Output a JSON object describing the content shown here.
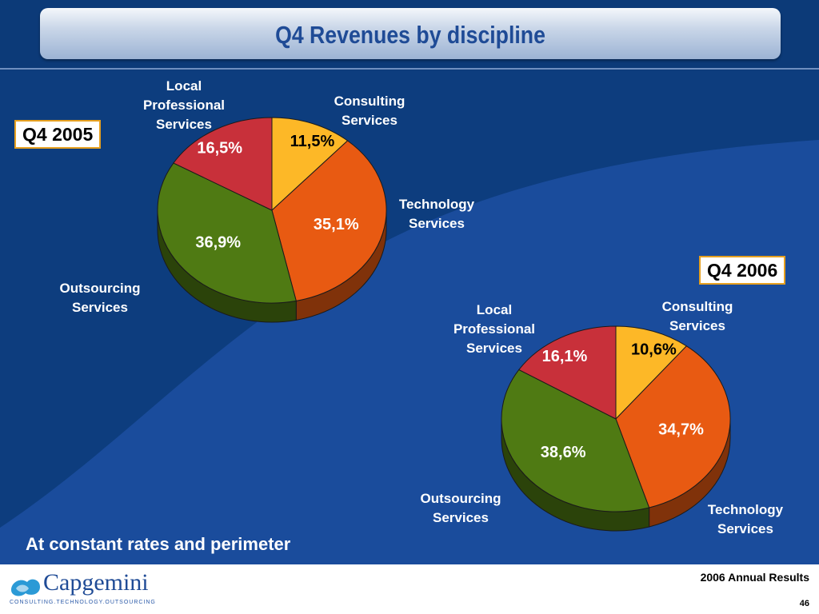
{
  "title": "Q4 Revenues by discipline",
  "caption": "At constant rates and perimeter",
  "footer": {
    "report": "2006 Annual Results",
    "page": "46"
  },
  "logo": {
    "name": "Capgemini",
    "tagline": "CONSULTING.TECHNOLOGY.OUTSOURCING"
  },
  "colors": {
    "consulting": "#fdb827",
    "technology": "#e85a12",
    "outsourcing": "#4f7a13",
    "local": "#c8303a"
  },
  "chart_data": [
    {
      "type": "pie",
      "title": "Q4 2005",
      "slices": [
        {
          "label": "Consulting Services",
          "value": 11.5,
          "display": "11,5%"
        },
        {
          "label": "Technology Services",
          "value": 35.1,
          "display": "35,1%"
        },
        {
          "label": "Outsourcing Services",
          "value": 36.9,
          "display": "36,9%"
        },
        {
          "label": "Local Professional Services",
          "value": 16.5,
          "display": "16,5%"
        }
      ]
    },
    {
      "type": "pie",
      "title": "Q4 2006",
      "slices": [
        {
          "label": "Consulting Services",
          "value": 10.6,
          "display": "10,6%"
        },
        {
          "label": "Technology Services",
          "value": 34.7,
          "display": "34,7%"
        },
        {
          "label": "Outsourcing Services",
          "value": 38.6,
          "display": "38,6%"
        },
        {
          "label": "Local Professional Services",
          "value": 16.1,
          "display": "16,1%"
        }
      ]
    }
  ],
  "labels_2005": {
    "consulting": "Consulting\nServices",
    "technology": "Technology\nServices",
    "outsourcing": "Outsourcing\nServices",
    "local": "Local\nProfessional\nServices"
  },
  "labels_2006": {
    "consulting": "Consulting\nServices",
    "technology": "Technology\nServices",
    "outsourcing": "Outsourcing\nServices",
    "local": "Local\nProfessional\nServices"
  }
}
